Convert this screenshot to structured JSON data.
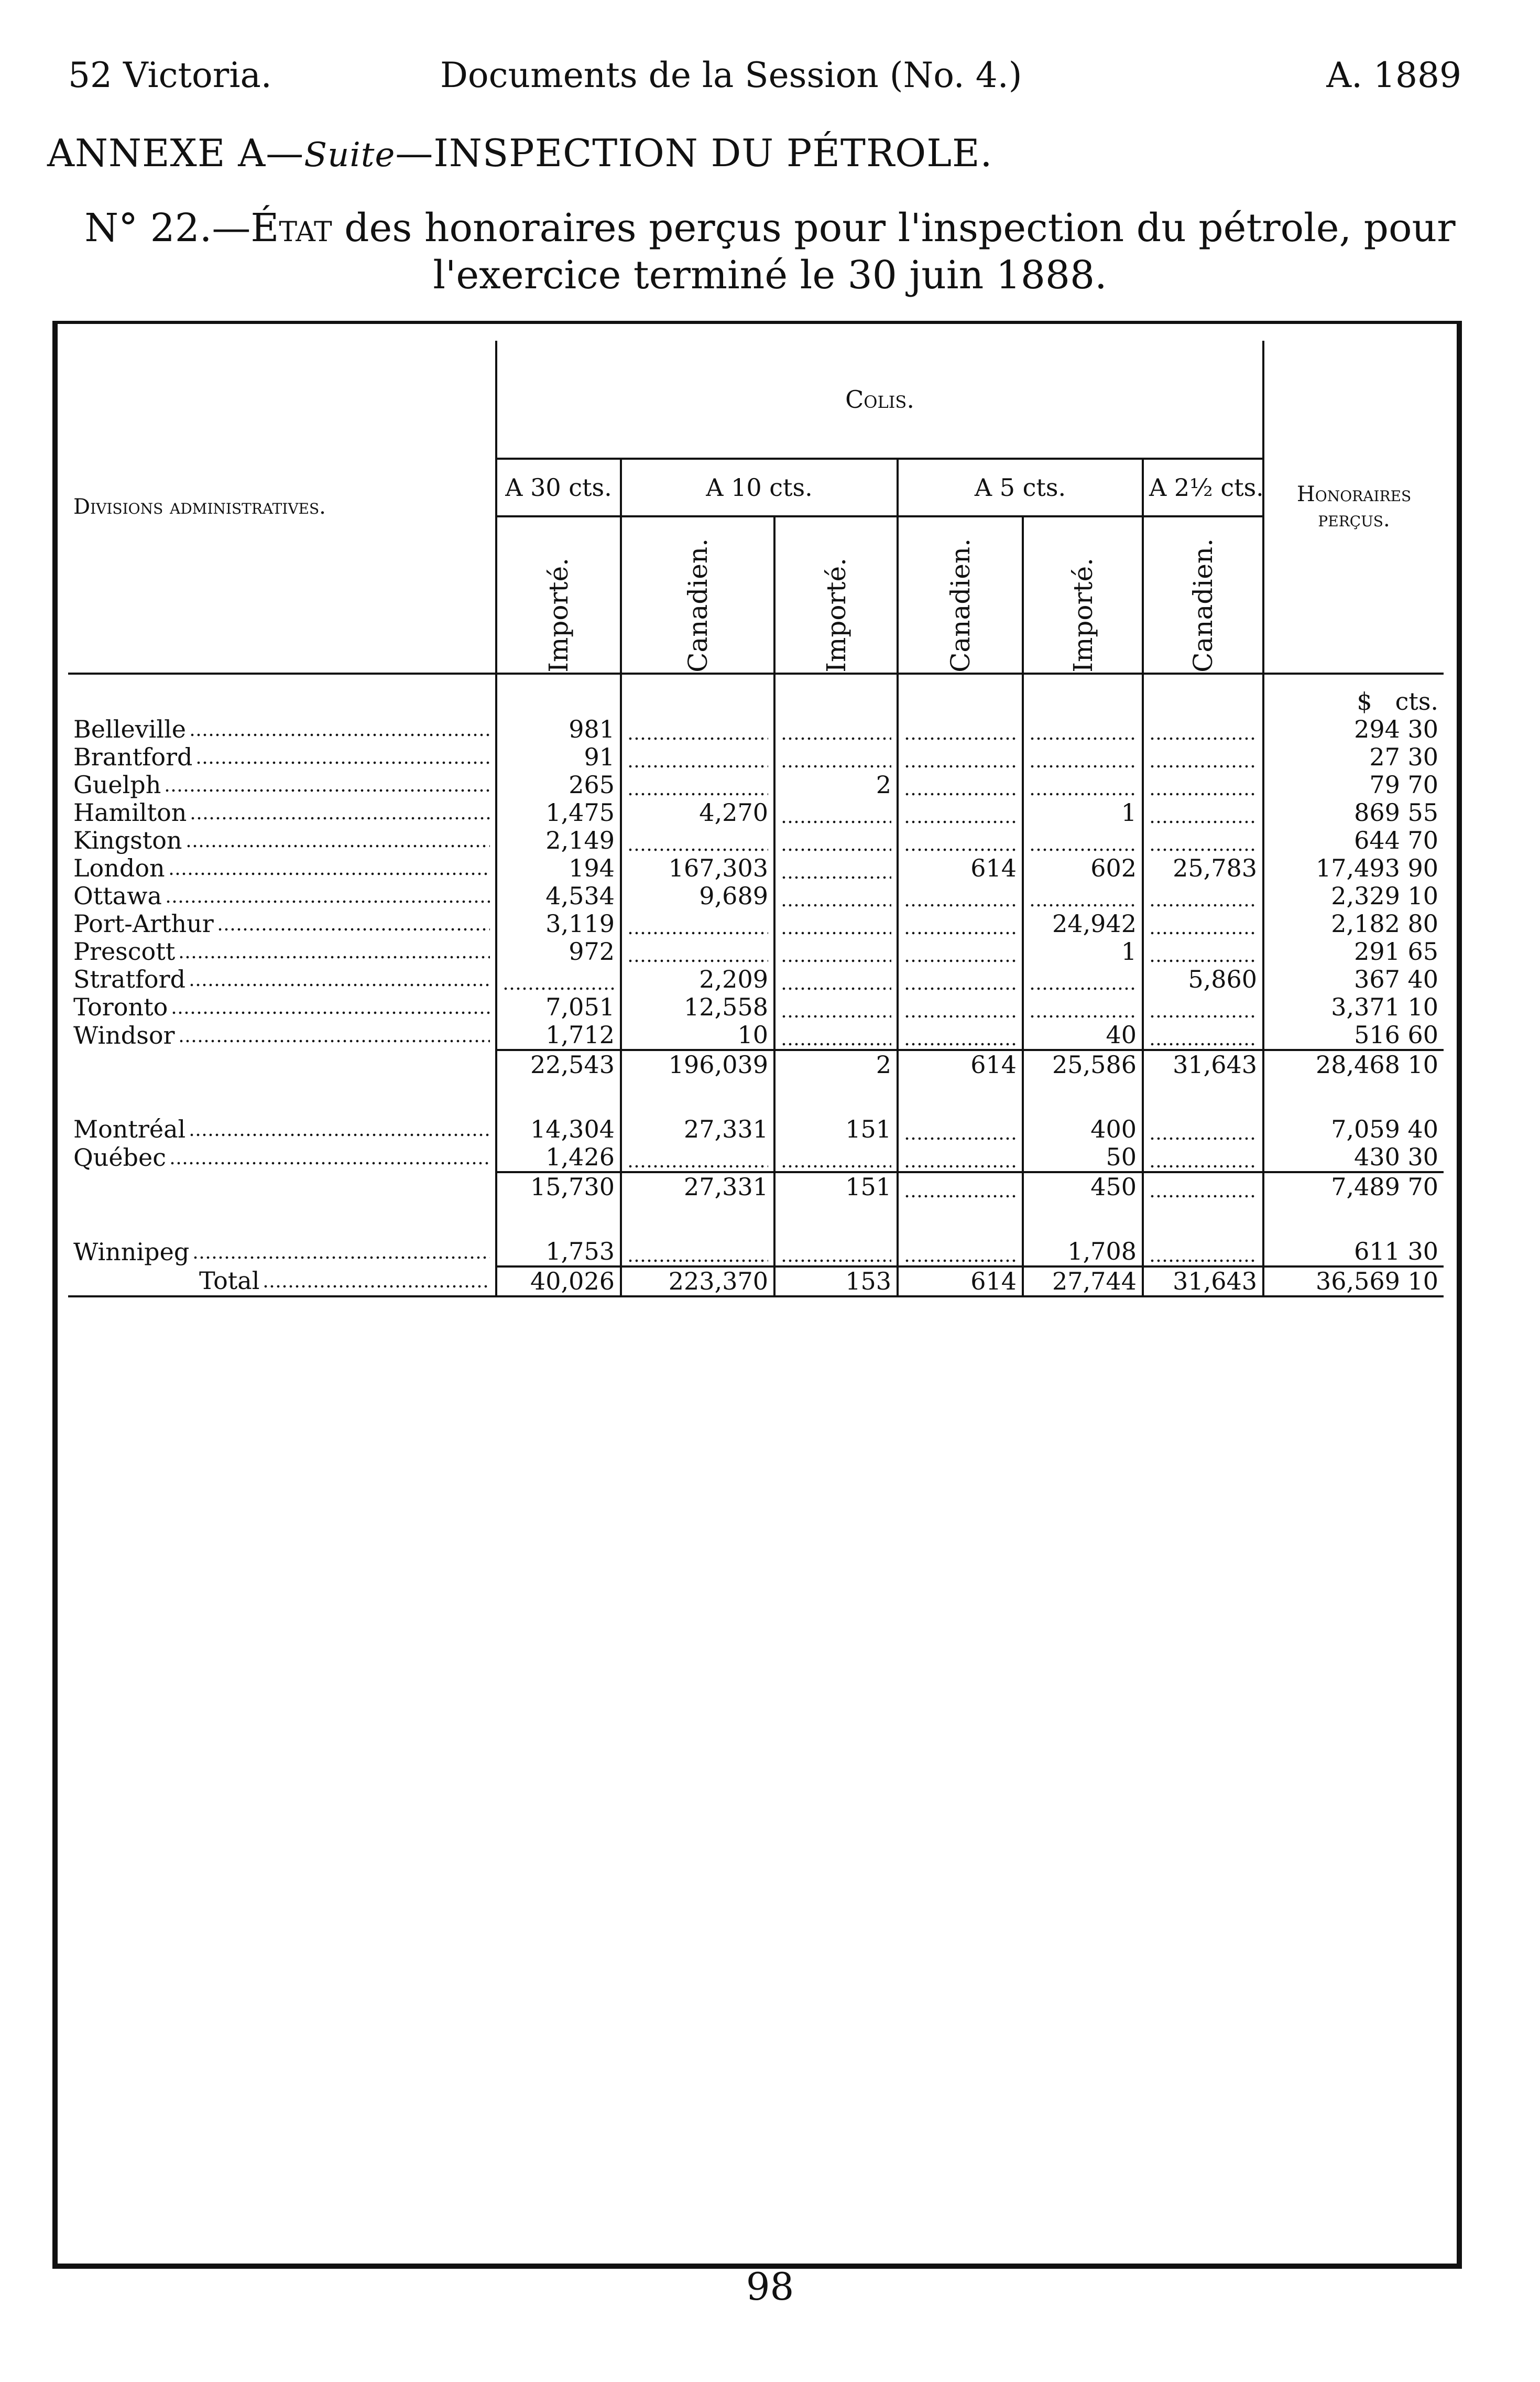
{
  "header": {
    "left": "52 Victoria.",
    "center": "Documents de la Session (No. 4.)",
    "right": "A. 1889"
  },
  "annex": {
    "prefix": "ANNEXE A—",
    "suite": "Suite",
    "title": "—INSPECTION DU PÉTROLE."
  },
  "subtitle": {
    "line1_num": "N° 22.—",
    "line1_etat": "État",
    "line1_rest": " des honoraires perçus pour l'inspection du pétrole, pour",
    "line2": "l'exercice terminé le 30 juin 1888."
  },
  "table": {
    "col_divisions": "Divisions administratives.",
    "col_colis": "Colis.",
    "col_honoraires": "Honoraires perçus.",
    "rates": [
      "A 30 cts.",
      "A 10 cts.",
      "A 5 cts.",
      "A 2½ cts."
    ],
    "subcols": [
      "Importé.",
      "Canadien.",
      "Importé.",
      "Canadien.",
      "Importé.",
      "Canadien."
    ],
    "units": {
      "dollars": "$",
      "cents": "cts."
    },
    "groups": [
      {
        "rows": [
          {
            "name": "Belleville",
            "v": [
              "981",
              "",
              "",
              "",
              "",
              ""
            ],
            "fee": "294 30"
          },
          {
            "name": "Brantford",
            "v": [
              "91",
              "",
              "",
              "",
              "",
              ""
            ],
            "fee": "27 30"
          },
          {
            "name": "Guelph",
            "v": [
              "265",
              "",
              "2",
              "",
              "",
              ""
            ],
            "fee": "79 70"
          },
          {
            "name": "Hamilton",
            "v": [
              "1,475",
              "4,270",
              "",
              "",
              "1",
              ""
            ],
            "fee": "869 55"
          },
          {
            "name": "Kingston",
            "v": [
              "2,149",
              "",
              "",
              "",
              "",
              ""
            ],
            "fee": "644 70"
          },
          {
            "name": "London",
            "v": [
              "194",
              "167,303",
              "",
              "614",
              "602",
              "25,783"
            ],
            "fee": "17,493 90"
          },
          {
            "name": "Ottawa",
            "v": [
              "4,534",
              "9,689",
              "",
              "",
              "",
              ""
            ],
            "fee": "2,329 10"
          },
          {
            "name": "Port-Arthur",
            "v": [
              "3,119",
              "",
              "",
              "",
              "24,942",
              ""
            ],
            "fee": "2,182 80"
          },
          {
            "name": "Prescott",
            "v": [
              "972",
              "",
              "",
              "",
              "1",
              ""
            ],
            "fee": "291 65"
          },
          {
            "name": "Stratford",
            "v": [
              "",
              "2,209",
              "",
              "",
              "",
              "5,860"
            ],
            "fee": "367 40"
          },
          {
            "name": "Toronto",
            "v": [
              "7,051",
              "12,558",
              "",
              "",
              "",
              ""
            ],
            "fee": "3,371 10"
          },
          {
            "name": "Windsor",
            "v": [
              "1,712",
              "10",
              "",
              "",
              "40",
              ""
            ],
            "fee": "516 60"
          }
        ],
        "subtotal": {
          "v": [
            "22,543",
            "196,039",
            "2",
            "614",
            "25,586",
            "31,643"
          ],
          "fee": "28,468 10"
        }
      },
      {
        "rows": [
          {
            "name": "Montréal",
            "v": [
              "14,304",
              "27,331",
              "151",
              "",
              "400",
              ""
            ],
            "fee": "7,059 40"
          },
          {
            "name": "Québec",
            "v": [
              "1,426",
              "",
              "",
              "",
              "50",
              ""
            ],
            "fee": "430 30"
          }
        ],
        "subtotal": {
          "v": [
            "15,730",
            "27,331",
            "151",
            "",
            "450",
            ""
          ],
          "fee": "7,489 70"
        }
      },
      {
        "rows": [
          {
            "name": "Winnipeg",
            "v": [
              "1,753",
              "",
              "",
              "",
              "1,708",
              ""
            ],
            "fee": "611 30"
          }
        ]
      }
    ],
    "total": {
      "label": "Total",
      "v": [
        "40,026",
        "223,370",
        "153",
        "614",
        "27,744",
        "31,643"
      ],
      "fee": "36,569 10"
    }
  },
  "page_number": "98"
}
